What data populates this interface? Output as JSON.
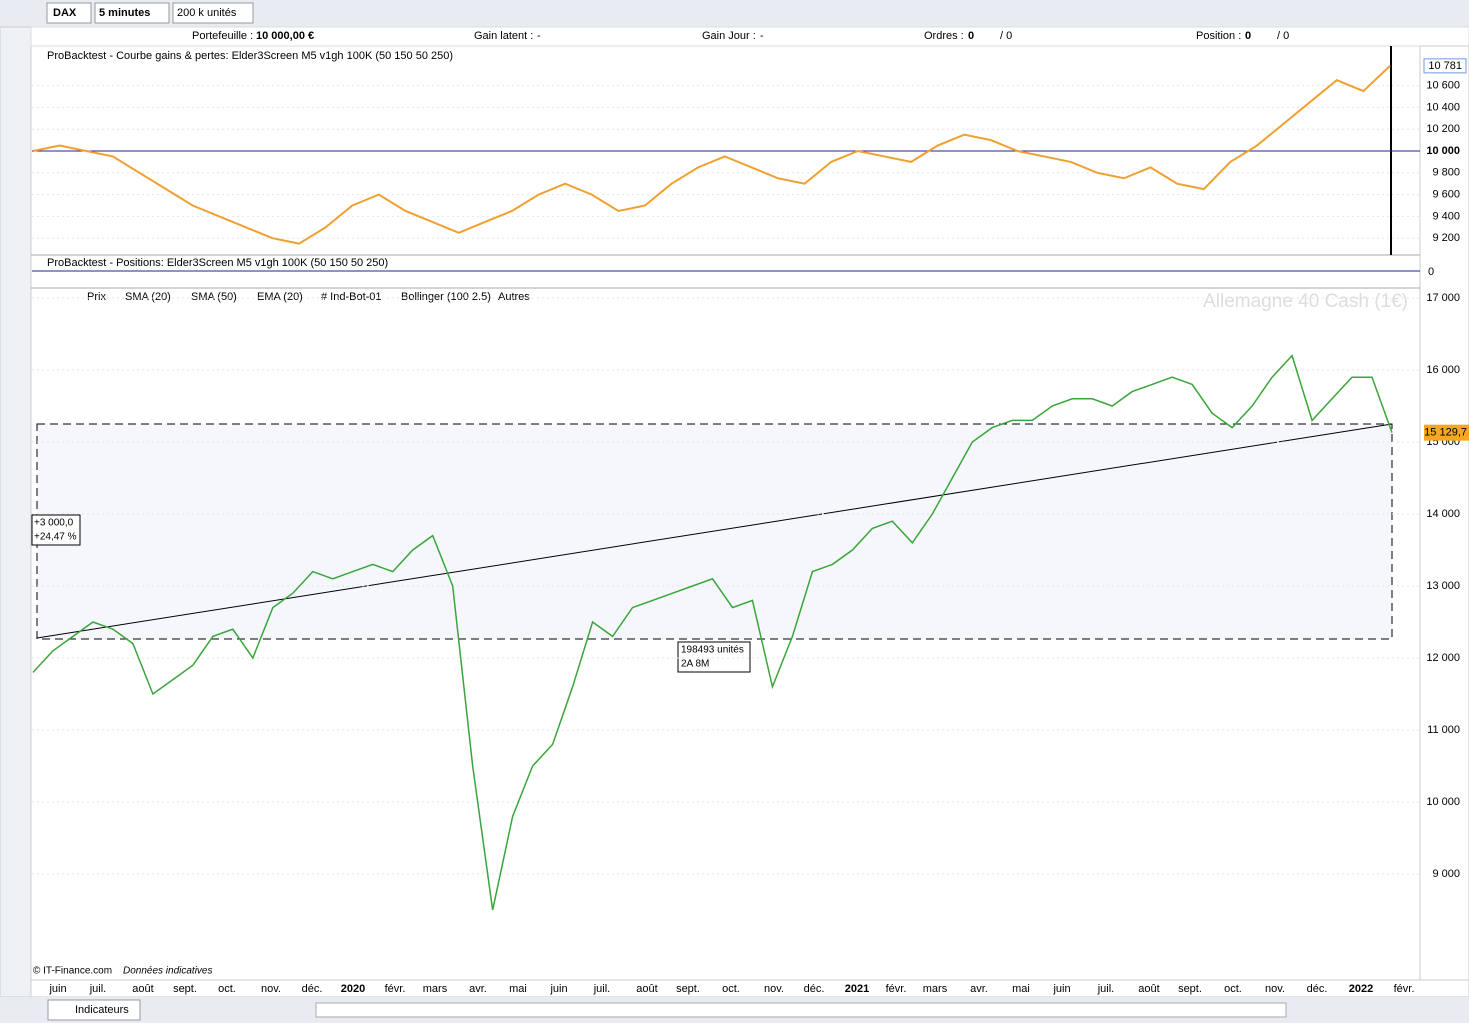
{
  "toolbar": {
    "instrument": "DAX",
    "interval": "5 minutes",
    "units": "200 k unités"
  },
  "info": {
    "portfolio_label": "Portefeuille :",
    "portfolio": "10 000,00 €",
    "latent_label": "Gain latent :",
    "latent": "-",
    "day_label": "Gain Jour :",
    "day": "-",
    "orders_label": "Ordres :",
    "orders": "0",
    "orders_total": "/ 0",
    "position_label": "Position :",
    "position": "0",
    "position_total": "/ 0"
  },
  "equity_panel": {
    "title": "ProBacktest - Courbe gains & pertes: Elder3Screen M5 v1gh 100K (50 150 50 250)",
    "yticks": [
      {
        "value": 10600,
        "label": "10 600"
      },
      {
        "value": 10400,
        "label": "10 400"
      },
      {
        "value": 10200,
        "label": "10 200"
      },
      {
        "value": 10000,
        "label": "10 000"
      },
      {
        "value": 9800,
        "label": "9 800"
      },
      {
        "value": 9600,
        "label": "9 600"
      },
      {
        "value": 9400,
        "label": "9 400"
      },
      {
        "value": 9200,
        "label": "9 200"
      }
    ],
    "last": {
      "value": 10781,
      "label": "10 781"
    },
    "values": [
      10000,
      10050,
      10000,
      9950,
      9800,
      9650,
      9500,
      9400,
      9300,
      9200,
      9150,
      9300,
      9500,
      9600,
      9450,
      9350,
      9250,
      9350,
      9450,
      9600,
      9700,
      9600,
      9450,
      9500,
      9700,
      9850,
      9950,
      9850,
      9750,
      9700,
      9900,
      10000,
      9950,
      9900,
      10050,
      10150,
      10100,
      10000,
      9950,
      9900,
      9800,
      9750,
      9850,
      9700,
      9650,
      9900,
      10050,
      10250,
      10450,
      10650,
      10550,
      10781
    ]
  },
  "positions_panel": {
    "title": "ProBacktest - Positions: Elder3Screen M5 v1gh 100K (50 150 50 250)",
    "axis": "0"
  },
  "price_panel": {
    "legend": [
      "Prix",
      "SMA (20)",
      "SMA (50)",
      "EMA (20)",
      "# Ind-Bot-01",
      "Bollinger (100 2.5)",
      "Autres"
    ],
    "watermark": "Allemagne 40 Cash (1€)",
    "yticks": [
      {
        "value": 17000,
        "label": "17 000"
      },
      {
        "value": 16000,
        "label": "16 000"
      },
      {
        "value": 15000,
        "label": "15 000"
      },
      {
        "value": 14000,
        "label": "14 000"
      },
      {
        "value": 13000,
        "label": "13 000"
      },
      {
        "value": 12000,
        "label": "12 000"
      },
      {
        "value": 11000,
        "label": "11 000"
      },
      {
        "value": 10000,
        "label": "10 000"
      },
      {
        "value": 9000,
        "label": "9 000"
      }
    ],
    "last": {
      "value": 15129.7,
      "label": "15 129,7"
    },
    "values": [
      11800,
      12100,
      12300,
      12500,
      12400,
      12200,
      11500,
      11700,
      11900,
      12300,
      12400,
      12000,
      12700,
      12900,
      13200,
      13100,
      13200,
      13300,
      13200,
      13500,
      13700,
      13000,
      10500,
      8500,
      9800,
      10500,
      10800,
      11600,
      12500,
      12300,
      12700,
      12800,
      12900,
      13000,
      13100,
      12700,
      12800,
      11600,
      12300,
      13200,
      13300,
      13500,
      13800,
      13900,
      13600,
      14000,
      14500,
      15000,
      15200,
      15300,
      15300,
      15500,
      15600,
      15600,
      15500,
      15700,
      15800,
      15900,
      15800,
      15400,
      15200,
      15500,
      15900,
      16200,
      15300,
      15600,
      15900,
      15900,
      15130
    ],
    "gain_box": [
      "+3 000,0",
      "+24,47 %"
    ],
    "size_box": [
      "198493 unités",
      "2A 8M"
    ]
  },
  "xaxis": [
    "juin",
    "juil.",
    "août",
    "sept.",
    "oct.",
    "nov.",
    "déc.",
    "2020",
    "févr.",
    "mars",
    "avr.",
    "mai",
    "juin",
    "juil.",
    "août",
    "sept.",
    "oct.",
    "nov.",
    "déc.",
    "2021",
    "févr.",
    "mars",
    "avr.",
    "mai",
    "juin",
    "juil.",
    "août",
    "sept.",
    "oct.",
    "nov.",
    "déc.",
    "2022",
    "févr."
  ],
  "footer": {
    "copyright": "© IT-Finance.com",
    "note": "Données indicatives",
    "indicators": "Indicateurs"
  }
}
